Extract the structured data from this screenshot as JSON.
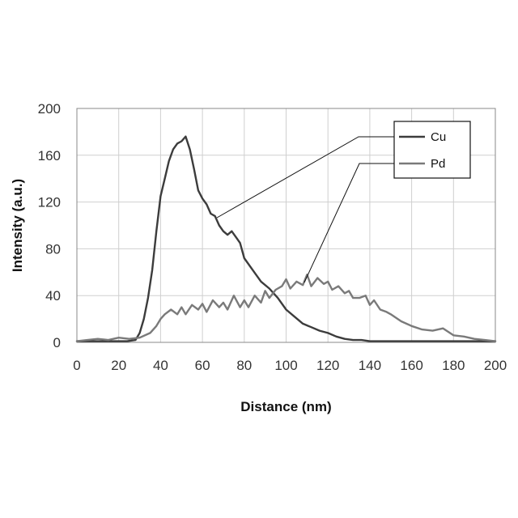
{
  "chart_data": {
    "type": "line",
    "xlabel": "Distance (nm)",
    "ylabel": "Intensity (a.u.)",
    "xlim": [
      0,
      200
    ],
    "ylim": [
      0,
      200
    ],
    "xticks": [
      "0",
      "20",
      "40",
      "60",
      "80",
      "100",
      "120",
      "140",
      "160",
      "180",
      "200"
    ],
    "yticks": [
      "0",
      "40",
      "80",
      "120",
      "160",
      "200"
    ],
    "grid": true,
    "legend_position": "top-right",
    "series": [
      {
        "name": "Cu",
        "color": "#3c3c3c",
        "x": [
          0,
          4,
          8,
          12,
          16,
          20,
          24,
          28,
          30,
          32,
          34,
          36,
          38,
          40,
          42,
          44,
          46,
          48,
          50,
          52,
          54,
          56,
          58,
          60,
          62,
          64,
          66,
          68,
          70,
          72,
          74,
          76,
          78,
          80,
          84,
          88,
          92,
          96,
          100,
          104,
          108,
          112,
          116,
          120,
          124,
          128,
          132,
          136,
          140,
          150,
          160,
          170,
          180,
          190,
          200
        ],
        "values": [
          1,
          1,
          1,
          1,
          1,
          1,
          1,
          2,
          8,
          20,
          38,
          62,
          95,
          125,
          140,
          155,
          165,
          170,
          172,
          176,
          165,
          148,
          130,
          123,
          118,
          110,
          108,
          100,
          95,
          92,
          95,
          90,
          85,
          72,
          62,
          52,
          46,
          38,
          28,
          22,
          16,
          13,
          10,
          8,
          5,
          3,
          2,
          2,
          1,
          1,
          1,
          1,
          1,
          1,
          1
        ]
      },
      {
        "name": "Pd",
        "color": "#7a7a7a",
        "x": [
          0,
          5,
          10,
          15,
          20,
          25,
          30,
          35,
          38,
          40,
          42,
          45,
          48,
          50,
          52,
          55,
          58,
          60,
          62,
          65,
          68,
          70,
          72,
          75,
          78,
          80,
          82,
          85,
          88,
          90,
          92,
          95,
          98,
          100,
          102,
          105,
          108,
          110,
          112,
          115,
          118,
          120,
          122,
          125,
          128,
          130,
          132,
          135,
          138,
          140,
          142,
          145,
          148,
          150,
          155,
          160,
          165,
          170,
          175,
          180,
          185,
          190,
          195,
          200
        ],
        "values": [
          1,
          2,
          3,
          2,
          4,
          3,
          4,
          8,
          14,
          20,
          24,
          28,
          24,
          30,
          24,
          32,
          28,
          33,
          26,
          36,
          30,
          34,
          28,
          40,
          30,
          36,
          30,
          40,
          34,
          44,
          38,
          45,
          48,
          54,
          46,
          52,
          49,
          58,
          48,
          55,
          50,
          52,
          45,
          48,
          42,
          44,
          38,
          38,
          40,
          32,
          36,
          28,
          26,
          24,
          18,
          14,
          11,
          10,
          12,
          6,
          5,
          3,
          2,
          1
        ]
      }
    ]
  }
}
